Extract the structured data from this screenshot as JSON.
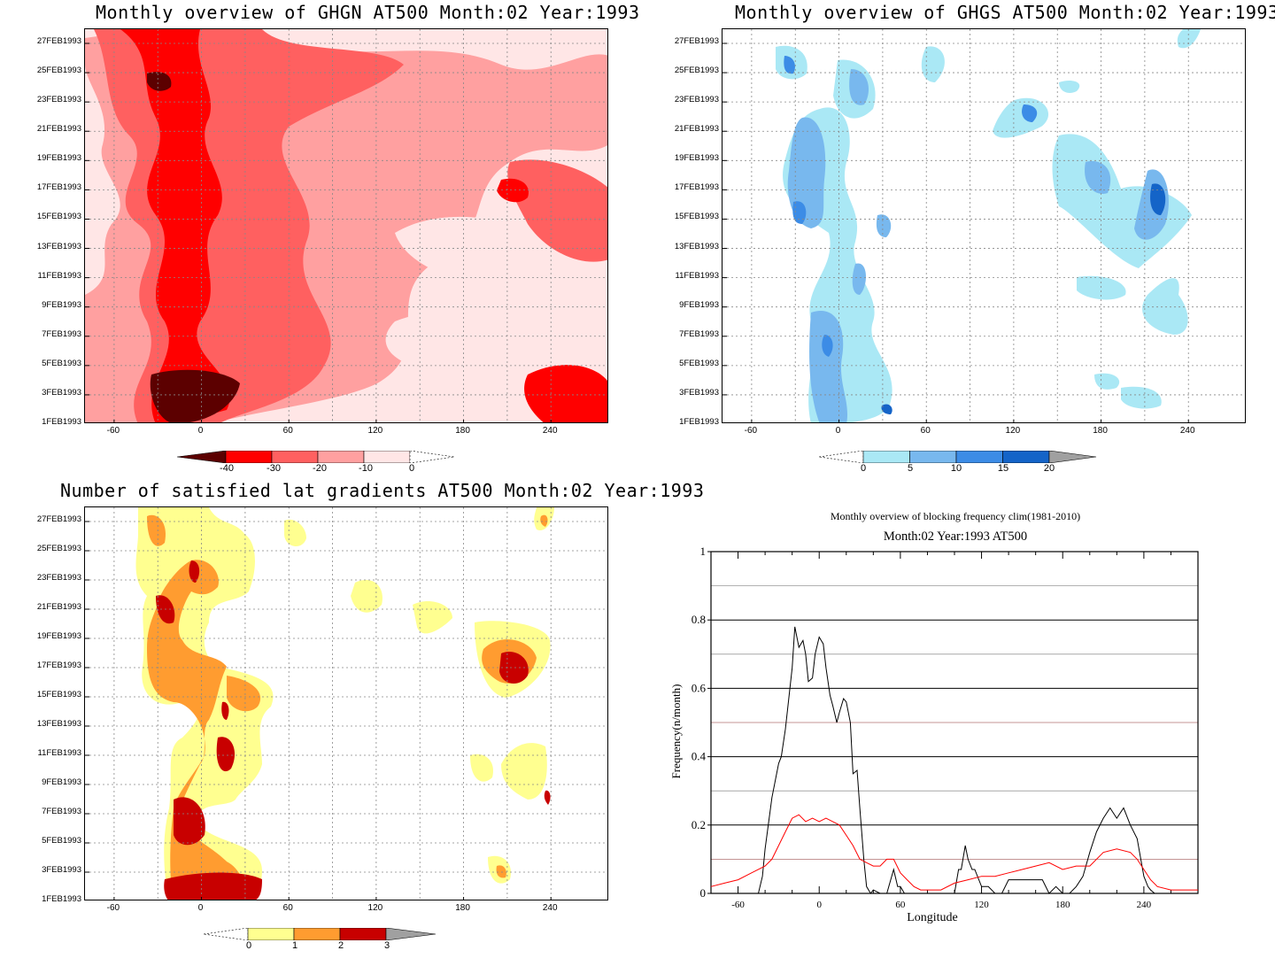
{
  "panels": {
    "ghgn": {
      "title": "Monthly overview of GHGN AT500 Month:02 Year:1993",
      "colorbar": {
        "labels": [
          "-40",
          "-30",
          "-20",
          "-10",
          "0"
        ],
        "colors": [
          "#5c0000",
          "#ff0000",
          "#ff6060",
          "#ffa0a0",
          "#ffe6e6"
        ]
      }
    },
    "ghgs": {
      "title": "Monthly overview of GHGS AT500 Month:02 Year:1993",
      "colorbar": {
        "labels": [
          "0",
          "5",
          "10",
          "15",
          "20"
        ],
        "colors": [
          "#aae8f5",
          "#78b8ee",
          "#3c8ce6",
          "#1464c8",
          "#a0a0a0"
        ]
      }
    },
    "lat": {
      "title": "Number of satisfied lat gradients AT500 Month:02 Year:1993",
      "colorbar": {
        "labels": [
          "0",
          "1",
          "2",
          "3"
        ],
        "colors": [
          "#ffff90",
          "#ff9c30",
          "#c80000",
          "#a0a0a0"
        ]
      }
    }
  },
  "y_ticks": [
    "27FEB1993",
    "25FEB1993",
    "23FEB1993",
    "21FEB1993",
    "19FEB1993",
    "17FEB1993",
    "15FEB1993",
    "13FEB1993",
    "11FEB1993",
    "9FEB1993",
    "7FEB1993",
    "5FEB1993",
    "3FEB1993",
    "1FEB1993"
  ],
  "x_ticks": [
    "-60",
    "0",
    "60",
    "120",
    "180",
    "240"
  ],
  "chart_data": {
    "type": "line",
    "title": "Monthly overview of blocking frequency clim(1981-2010)",
    "subtitle": "Month:02 Year:1993  AT500",
    "xlabel": "Longitude",
    "ylabel": "Frequency(n/month)",
    "xlim": [
      -80,
      280
    ],
    "ylim": [
      0,
      1
    ],
    "x_ticks": [
      "-60",
      "0",
      "60",
      "120",
      "180",
      "240"
    ],
    "y_ticks": [
      "0",
      "0.2",
      "0.4",
      "0.6",
      "0.8",
      "1"
    ],
    "colors": {
      "year": "#000000",
      "clim": "#ff0000"
    },
    "series": [
      {
        "x": [
          -80,
          -70,
          -60,
          -50,
          -45,
          -42,
          -40,
          -35,
          -30,
          -28,
          -25,
          -20,
          -18,
          -15,
          -12,
          -10,
          -8,
          -5,
          -3,
          0,
          3,
          5,
          8,
          10,
          13,
          15,
          18,
          20,
          23,
          25,
          28,
          30,
          33,
          35,
          38,
          40,
          45,
          50,
          55,
          58,
          60,
          63,
          65,
          70,
          75,
          80,
          85,
          90,
          95,
          100,
          103,
          105,
          108,
          110,
          113,
          115,
          120,
          125,
          130,
          135,
          140,
          145,
          150,
          155,
          160,
          165,
          170,
          175,
          180,
          185,
          190,
          195,
          200,
          205,
          210,
          215,
          220,
          225,
          230,
          235,
          240,
          243,
          245,
          248,
          250,
          255,
          260,
          270,
          280
        ],
        "y": [
          0,
          0,
          0,
          0,
          0,
          0.05,
          0.13,
          0.28,
          0.38,
          0.4,
          0.48,
          0.66,
          0.78,
          0.72,
          0.74,
          0.7,
          0.62,
          0.63,
          0.7,
          0.75,
          0.73,
          0.66,
          0.58,
          0.55,
          0.5,
          0.53,
          0.57,
          0.56,
          0.5,
          0.35,
          0.36,
          0.25,
          0.1,
          0.02,
          0,
          0.01,
          0,
          0,
          0.07,
          0.02,
          0.02,
          0,
          0,
          0,
          0,
          0,
          0,
          0,
          0,
          0,
          0.07,
          0.07,
          0.14,
          0.1,
          0.07,
          0.07,
          0.02,
          0.02,
          0,
          0,
          0.04,
          0.04,
          0.04,
          0.04,
          0.04,
          0.04,
          0,
          0.02,
          0,
          0,
          0.02,
          0.05,
          0.12,
          0.18,
          0.22,
          0.25,
          0.22,
          0.25,
          0.2,
          0.16,
          0.05,
          0.02,
          0.01,
          0,
          0,
          0,
          0,
          0,
          0
        ]
      },
      {
        "x": [
          -80,
          -70,
          -60,
          -50,
          -40,
          -35,
          -30,
          -25,
          -20,
          -15,
          -10,
          -5,
          0,
          5,
          10,
          15,
          20,
          25,
          30,
          35,
          40,
          45,
          50,
          55,
          60,
          65,
          70,
          75,
          80,
          90,
          100,
          110,
          120,
          130,
          140,
          150,
          160,
          170,
          180,
          190,
          200,
          210,
          220,
          230,
          235,
          240,
          245,
          250,
          260,
          270,
          280
        ],
        "y": [
          0.02,
          0.03,
          0.04,
          0.06,
          0.08,
          0.1,
          0.14,
          0.18,
          0.22,
          0.23,
          0.21,
          0.22,
          0.21,
          0.22,
          0.21,
          0.2,
          0.17,
          0.14,
          0.1,
          0.09,
          0.08,
          0.08,
          0.1,
          0.1,
          0.06,
          0.04,
          0.02,
          0.01,
          0.01,
          0.01,
          0.03,
          0.04,
          0.05,
          0.05,
          0.06,
          0.07,
          0.08,
          0.09,
          0.07,
          0.08,
          0.08,
          0.12,
          0.13,
          0.12,
          0.1,
          0.07,
          0.04,
          0.02,
          0.01,
          0.01,
          0.01
        ]
      }
    ]
  }
}
